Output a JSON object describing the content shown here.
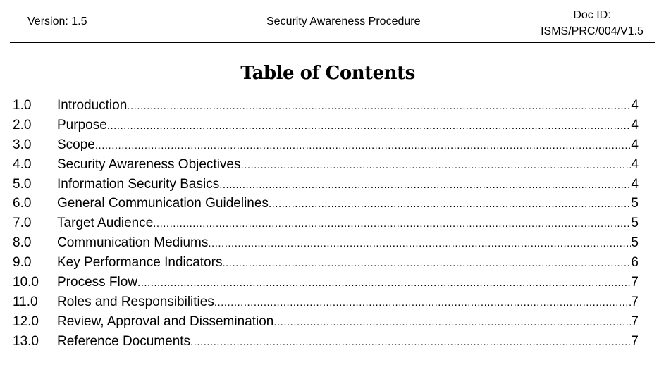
{
  "header": {
    "version": "Version: 1.5",
    "title": "Security Awareness Procedure",
    "doc_id_label": "Doc ID:",
    "doc_id": "ISMS/PRC/004/V1.5"
  },
  "heading": "Table of Contents",
  "toc": [
    {
      "num": "1.0",
      "title": "Introduction",
      "page": "4"
    },
    {
      "num": "2.0",
      "title": "Purpose",
      "page": "4"
    },
    {
      "num": "3.0",
      "title": "Scope",
      "page": "4"
    },
    {
      "num": "4.0",
      "title": "Security Awareness Objectives",
      "page": "4"
    },
    {
      "num": "5.0",
      "title": "Information Security Basics",
      "page": "4"
    },
    {
      "num": "6.0",
      "title": "General Communication Guidelines",
      "page": "5"
    },
    {
      "num": "7.0",
      "title": "Target Audience",
      "page": "5"
    },
    {
      "num": "8.0",
      "title": "Communication Mediums",
      "page": "5"
    },
    {
      "num": "9.0",
      "title": "Key Performance Indicators",
      "page": "6"
    },
    {
      "num": "10.0",
      "title": "Process Flow",
      "page": "7"
    },
    {
      "num": "11.0",
      "title": "Roles and Responsibilities",
      "page": "7"
    },
    {
      "num": "12.0",
      "title": "Review, Approval and Dissemination",
      "page": "7"
    },
    {
      "num": "13.0",
      "title": "Reference Documents",
      "page": "7"
    }
  ]
}
